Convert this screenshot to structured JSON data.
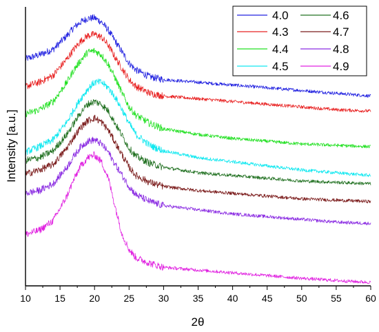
{
  "chart_data": {
    "type": "line",
    "xlabel": "2θ",
    "ylabel": "Intensity [a.u.]",
    "xlim": [
      10,
      60
    ],
    "ylim": [
      0,
      100
    ],
    "xticks": [
      10,
      15,
      20,
      25,
      30,
      35,
      40,
      45,
      50,
      55,
      60
    ],
    "legend_position": "top-right",
    "legend_columns": 2,
    "x": [
      10,
      12,
      14,
      16,
      17,
      18,
      19,
      20,
      21,
      22,
      23,
      24,
      25,
      26,
      28,
      30,
      35,
      40,
      45,
      50,
      55,
      60
    ],
    "series": [
      {
        "name": "4.0",
        "color": "#2020e0",
        "values": [
          82.0,
          83.5,
          85.5,
          90.5,
          93.5,
          95.5,
          96.8,
          97.0,
          95.5,
          92.5,
          88.5,
          84.5,
          80.5,
          78.0,
          75.5,
          74.5,
          73.5,
          72.5,
          71.5,
          70.5,
          69.5,
          68.5
        ]
      },
      {
        "name": "4.3",
        "color": "#e82020",
        "values": [
          72.0,
          73.5,
          76.0,
          82.0,
          85.5,
          88.5,
          90.5,
          91.0,
          90.0,
          87.0,
          82.5,
          78.5,
          74.5,
          72.0,
          69.5,
          68.5,
          67.5,
          66.5,
          65.5,
          64.5,
          63.5,
          63.0
        ]
      },
      {
        "name": "4.4",
        "color": "#20e020",
        "values": [
          62.0,
          63.5,
          66.5,
          73.5,
          78.0,
          81.5,
          84.5,
          85.0,
          83.5,
          80.0,
          75.0,
          69.5,
          64.5,
          61.5,
          58.5,
          56.5,
          54.5,
          53.0,
          52.0,
          51.0,
          50.5,
          50.0
        ]
      },
      {
        "name": "4.5",
        "color": "#10e8f0",
        "values": [
          48.0,
          50.0,
          52.5,
          59.0,
          63.5,
          67.5,
          71.0,
          73.5,
          73.5,
          71.5,
          68.0,
          63.5,
          58.5,
          54.5,
          50.5,
          48.5,
          46.0,
          44.5,
          43.0,
          41.5,
          40.5,
          39.5
        ]
      },
      {
        "name": "4.6",
        "color": "#207020",
        "values": [
          45.0,
          46.0,
          48.5,
          54.5,
          58.5,
          62.5,
          65.5,
          66.5,
          65.5,
          63.0,
          58.5,
          54.0,
          49.5,
          46.5,
          44.0,
          42.5,
          40.5,
          39.5,
          38.5,
          37.5,
          37.0,
          36.5
        ]
      },
      {
        "name": "4.7",
        "color": "#7a1a1a",
        "values": [
          40.0,
          41.5,
          43.5,
          49.5,
          53.5,
          57.0,
          59.5,
          60.5,
          59.0,
          56.0,
          51.5,
          47.0,
          42.5,
          39.5,
          37.0,
          35.5,
          34.0,
          33.0,
          32.0,
          31.0,
          30.5,
          30.0
        ]
      },
      {
        "name": "4.8",
        "color": "#8a2be2",
        "values": [
          33.0,
          34.0,
          36.5,
          42.5,
          46.5,
          50.0,
          52.0,
          52.5,
          51.0,
          48.0,
          43.5,
          39.5,
          35.5,
          32.5,
          30.0,
          28.5,
          27.0,
          25.5,
          24.5,
          23.5,
          22.5,
          22.0
        ]
      },
      {
        "name": "4.9",
        "color": "#e020e0",
        "values": [
          18.0,
          19.5,
          23.0,
          32.0,
          38.0,
          43.0,
          46.0,
          47.0,
          44.5,
          38.5,
          28.0,
          18.0,
          12.5,
          9.5,
          7.5,
          6.0,
          5.0,
          4.0,
          3.0,
          2.0,
          1.2,
          0.5
        ]
      }
    ]
  }
}
